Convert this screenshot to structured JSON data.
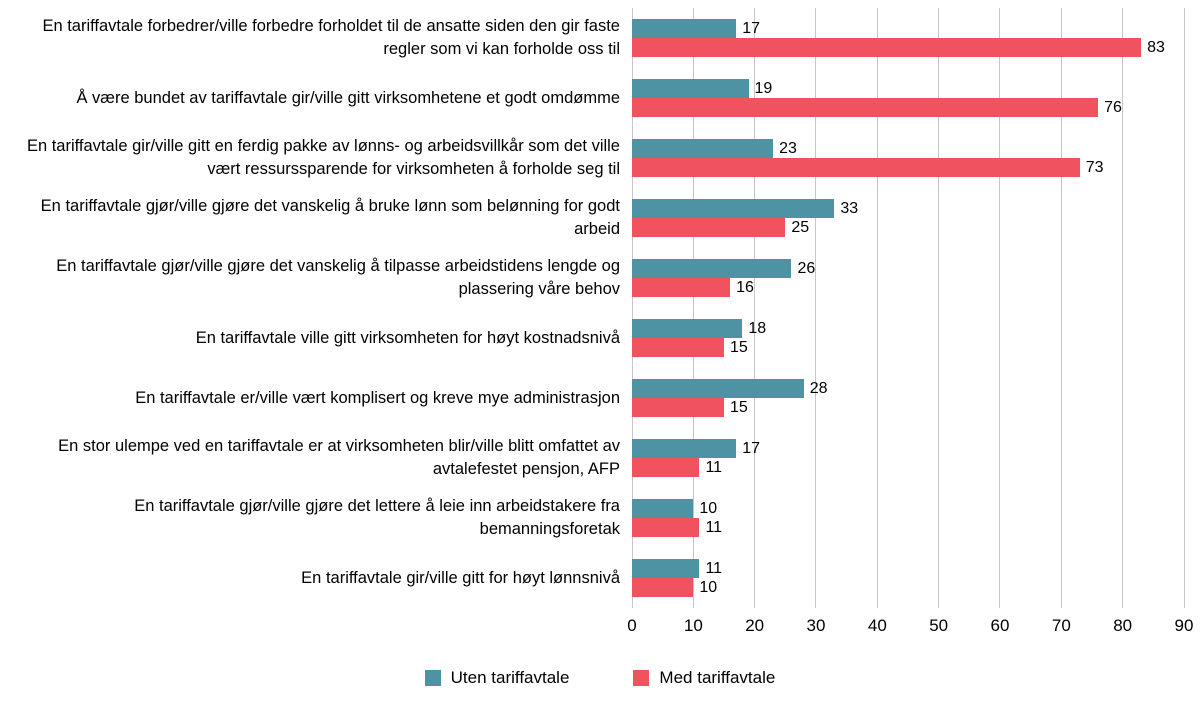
{
  "chart_data": {
    "type": "bar",
    "orientation": "horizontal",
    "title": "",
    "xlabel": "",
    "ylabel": "",
    "xlim": [
      0,
      90
    ],
    "xticks": [
      0,
      10,
      20,
      30,
      40,
      50,
      60,
      70,
      80,
      90
    ],
    "grid": "vertical",
    "legend_position": "bottom",
    "categories": [
      "En tariffavtale forbedrer/ville forbedre forholdet til de ansatte siden den gir faste regler som vi kan forholde oss til",
      "Å være bundet av tariffavtale gir/ville gitt virksomhetene et godt omdømme",
      "En tariffavtale gir/ville gitt en ferdig pakke av lønns- og arbeidsvillkår som det ville vært ressurssparende for virksomheten å forholde seg til",
      "En tariffavtale gjør/ville gjøre det vanskelig å bruke lønn som belønning for godt arbeid",
      "En tariffavtale gjør/ville gjøre det vanskelig å tilpasse arbeidstidens lengde og plassering våre behov",
      "En tariffavtale ville gitt virksomheten for høyt kostnadsnivå",
      "En tariffavtale er/ville vært komplisert og kreve mye administrasjon",
      "En stor ulempe ved en tariffavtale er at virksomheten blir/ville blitt omfattet av avtalefestet pensjon, AFP",
      "En tariffavtale gjør/ville gjøre det lettere å leie inn arbeidstakere fra bemanningsforetak",
      "En tariffavtale gir/ville gitt for høyt lønnsnivå"
    ],
    "series": [
      {
        "name": "Uten tariffavtale",
        "color": "#4e93a4",
        "values": [
          17,
          19,
          23,
          33,
          26,
          18,
          28,
          17,
          10,
          11
        ]
      },
      {
        "name": "Med tariffavtale",
        "color": "#f0535f",
        "values": [
          83,
          76,
          73,
          25,
          16,
          15,
          15,
          11,
          11,
          10
        ]
      }
    ]
  }
}
